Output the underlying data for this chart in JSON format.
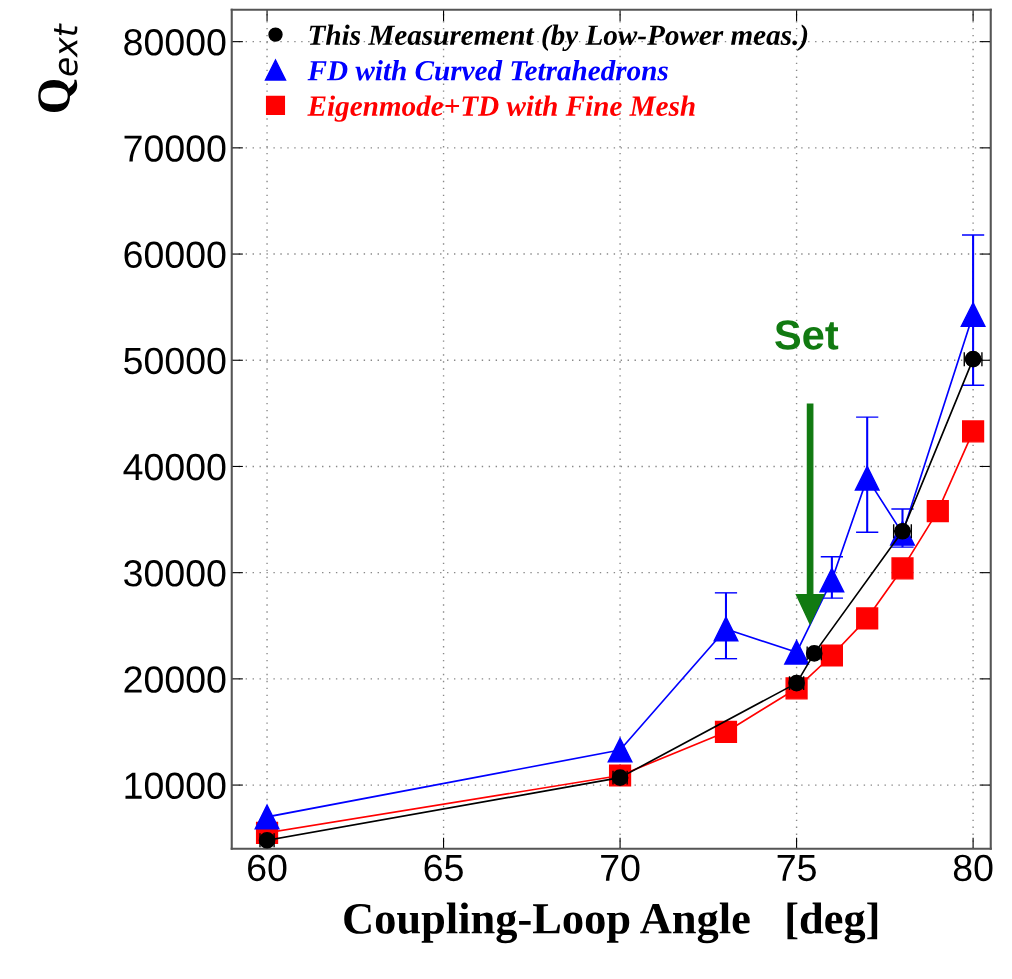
{
  "chart_data": {
    "type": "line",
    "xlabel": "Coupling-Loop Angle   [deg]",
    "ylabel": "Q$_{ext}$",
    "xlim": [
      59,
      80.5
    ],
    "xticks": [
      60,
      65,
      70,
      75,
      80
    ],
    "ylim": [
      4000,
      83000
    ],
    "yticks": [
      10000,
      20000,
      30000,
      40000,
      50000,
      60000,
      70000,
      80000
    ],
    "grid": true,
    "legend": "top left",
    "series": [
      {
        "name": "Eigenmode+TD with Fine Mesh",
        "color": "#ff0000",
        "marker": "square",
        "x": [
          60,
          70,
          73,
          75,
          76,
          77,
          78,
          79,
          80
        ],
        "values": [
          5500,
          10900,
          15000,
          19100,
          22200,
          25700,
          30400,
          35800,
          43300
        ]
      },
      {
        "name": "FD with Curved Tetrahedrons",
        "color": "#0000ff",
        "marker": "triangle",
        "x": [
          60,
          70,
          73,
          75,
          76,
          77,
          78,
          80
        ],
        "values": [
          7000,
          13300,
          24700,
          22500,
          29300,
          38900,
          33700,
          54300
        ],
        "errors": [
          null,
          null,
          [
            21900,
            28100
          ],
          null,
          [
            27600,
            31500
          ],
          [
            33800,
            44650
          ],
          [
            32400,
            36000
          ],
          [
            47650,
            61800
          ]
        ]
      },
      {
        "name": "This Measurement (by Low-Power meas.)",
        "color": "#000000",
        "marker": "circle",
        "x": [
          60,
          70,
          75,
          75.5,
          78,
          80
        ],
        "values": [
          4800,
          10700,
          19600,
          22400,
          33900,
          50100
        ],
        "xerrors": [
          0.2,
          0.2,
          0.2,
          0.2,
          0.25,
          0.25
        ]
      }
    ],
    "annotations": [
      "Set"
    ]
  }
}
